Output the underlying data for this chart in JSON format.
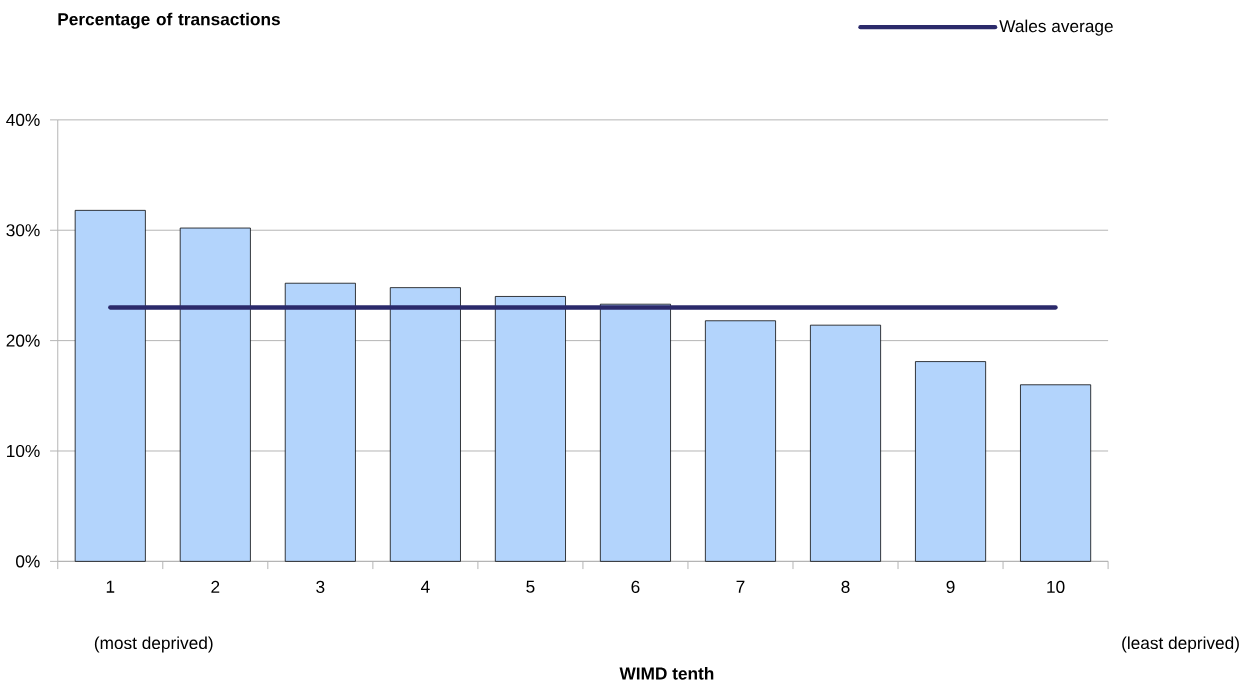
{
  "chart_data": {
    "type": "bar",
    "ylabel": "Percentage of transactions",
    "xlabel": "WIMD tenth",
    "categories": [
      "1",
      "2",
      "3",
      "4",
      "5",
      "6",
      "7",
      "8",
      "9",
      "10"
    ],
    "annotations": [
      "(most deprived)",
      "(least deprived)"
    ],
    "series": [
      {
        "color": "#b3d4fc",
        "values": [
          31.8,
          30.2,
          25.2,
          24.8,
          24.0,
          23.3,
          21.8,
          21.4,
          18.1,
          16.0
        ]
      },
      {
        "type": "line",
        "name": "Wales average",
        "color": "#2b2a6b",
        "values": [
          23.0,
          23.0,
          23.0,
          23.0,
          23.0,
          23.0,
          23.0,
          23.0,
          23.0,
          23.0
        ]
      }
    ],
    "ylim": [
      0,
      40
    ],
    "yticks": [
      {
        "value": 0,
        "label": "0%"
      },
      {
        "value": 10,
        "label": "10%"
      },
      {
        "value": 20,
        "label": "20%"
      },
      {
        "value": 30,
        "label": "30%"
      },
      {
        "value": 40,
        "label": "40%"
      }
    ],
    "grid": "y",
    "legend": "top right"
  }
}
